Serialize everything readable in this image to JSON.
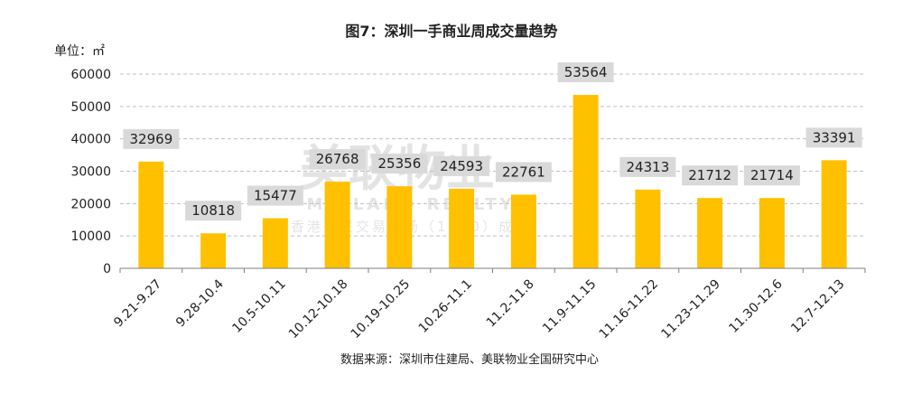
{
  "chart_data": {
    "type": "bar",
    "title": "图7：深圳一手商业周成交量趋势",
    "unit_label": "单位：㎡",
    "source": "数据来源：深圳市住建局、美联物业全国研究中心",
    "watermark": {
      "main": "美联物业",
      "latin": "MIDLAND REALTY",
      "sub": "香港美联交易市场（1200）成员"
    },
    "categories": [
      "9.21-9.27",
      "9.28-10.4",
      "10.5-10.11",
      "10.12-10.18",
      "10.19-10.25",
      "10.26-11.1",
      "11.2-11.8",
      "11.9-11.15",
      "11.16-11.22",
      "11.23-11.29",
      "11.30-12.6",
      "12.7-12.13"
    ],
    "series": [
      {
        "values": [
          32969,
          10818,
          15477,
          26768,
          25356,
          24593,
          22761,
          53564,
          24313,
          21712,
          21714,
          33391
        ]
      }
    ],
    "y_ticks": [
      0,
      10000,
      20000,
      30000,
      40000,
      50000,
      60000
    ],
    "ylim": [
      0,
      60000
    ],
    "grid": true,
    "colors": {
      "bar": "#FFC000",
      "label_bg": "#D9D9D9",
      "grid": "#BFBFBF",
      "axis": "#7F7F7F"
    }
  }
}
